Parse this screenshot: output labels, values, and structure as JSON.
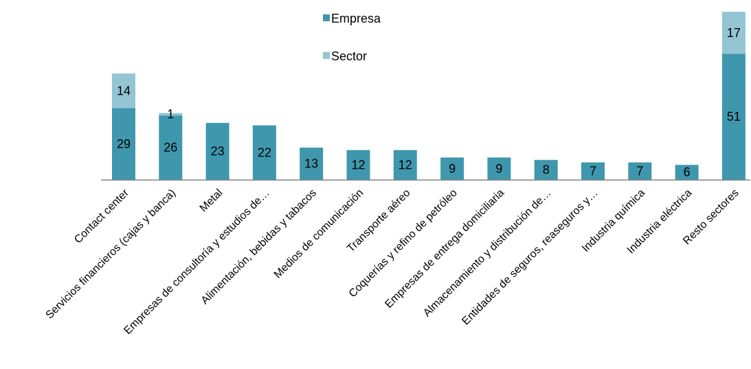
{
  "colors": {
    "empresa": "#3f97ad",
    "sector": "#93c5d4",
    "axis": "#808080",
    "text": "#000000"
  },
  "legend": {
    "position": "top-center",
    "items": [
      {
        "label": "Empresa",
        "color": "#3f97ad"
      },
      {
        "label": "Sector",
        "color": "#93c5d4"
      }
    ]
  },
  "chart_data": {
    "type": "bar",
    "stacked": true,
    "grid": false,
    "categories": [
      "Contact center",
      "Servicios financieros (cajas y banca)",
      "Metal",
      "Empresas de consultoría y estudios de…",
      "Alimentación, bebidas y tabacos",
      "Medios de comunicación",
      "Transporte aéreo",
      "Coquerías y refino de petróleo",
      "Empresas de entrega domiciliaria",
      "Almacenamiento y distribución de…",
      "Entidades de seguros, reaseguros y…",
      "Industria química",
      "Industria eléctrica",
      "Resto sectores"
    ],
    "series": [
      {
        "name": "Empresa",
        "values": [
          29,
          26,
          23,
          22,
          13,
          12,
          12,
          9,
          9,
          8,
          7,
          7,
          6,
          51
        ]
      },
      {
        "name": "Sector",
        "values": [
          14,
          1,
          null,
          null,
          null,
          null,
          null,
          null,
          null,
          null,
          null,
          null,
          null,
          17
        ]
      }
    ],
    "ylim": [
      0,
      68
    ]
  }
}
